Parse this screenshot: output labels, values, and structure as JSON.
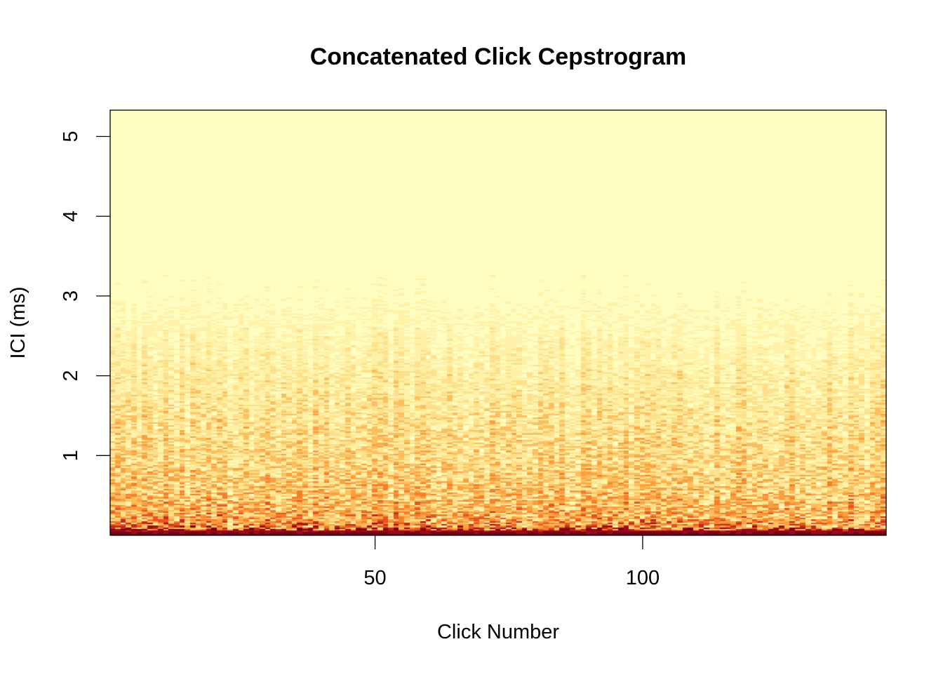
{
  "chart_data": {
    "type": "heatmap",
    "title": "Concatenated Click Cepstrogram",
    "xlabel": "Click Number",
    "ylabel": "ICI (ms)",
    "xlim": [
      0.5,
      145.5
    ],
    "ylim": [
      0,
      5.33
    ],
    "x_ticks": [
      50,
      100
    ],
    "y_ticks": [
      1,
      2,
      3,
      4,
      5
    ],
    "n_clicks": 145,
    "ici_bin_ms": 0.02,
    "grid": false,
    "legend": "none",
    "colormap": [
      "#fffdc0",
      "#fff2a8",
      "#fee08b",
      "#fdbf5e",
      "#fca03f",
      "#f77f2a",
      "#e8541f",
      "#c42a1c",
      "#9a0c1c",
      "#7a0019"
    ],
    "intensity_profile": {
      "description_free": true,
      "ici_ms": [
        0.0,
        0.03,
        0.06,
        0.1,
        0.2,
        0.4,
        0.7,
        1.0,
        1.5,
        2.0,
        2.5,
        3.0,
        4.0,
        5.33
      ],
      "mean_level": [
        0.97,
        0.9,
        0.7,
        0.52,
        0.42,
        0.36,
        0.3,
        0.26,
        0.22,
        0.17,
        0.11,
        0.06,
        0.03,
        0.02
      ]
    }
  }
}
